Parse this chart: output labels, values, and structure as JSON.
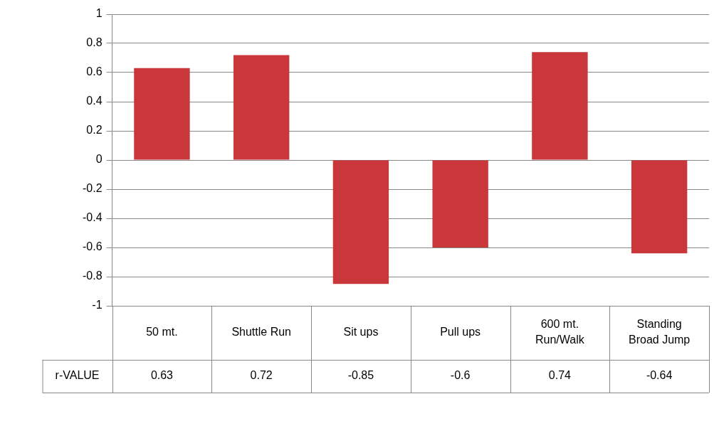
{
  "chart_data": {
    "type": "bar",
    "categories": [
      "50 mt.",
      "Shuttle Run",
      "Sit ups",
      "Pull ups",
      "600 mt. Run/Walk",
      "Standing Broad Jump"
    ],
    "series": [
      {
        "name": "r-VALUE",
        "color": "#c9373a",
        "values": [
          0.63,
          0.72,
          -0.85,
          -0.6,
          0.74,
          -0.64
        ]
      }
    ],
    "ylim": [
      -1,
      1
    ],
    "yticks": [
      -1,
      -0.8,
      -0.6,
      -0.4,
      -0.2,
      0,
      0.2,
      0.4,
      0.6,
      0.8,
      1
    ],
    "grid": "y",
    "data_labels": true
  }
}
